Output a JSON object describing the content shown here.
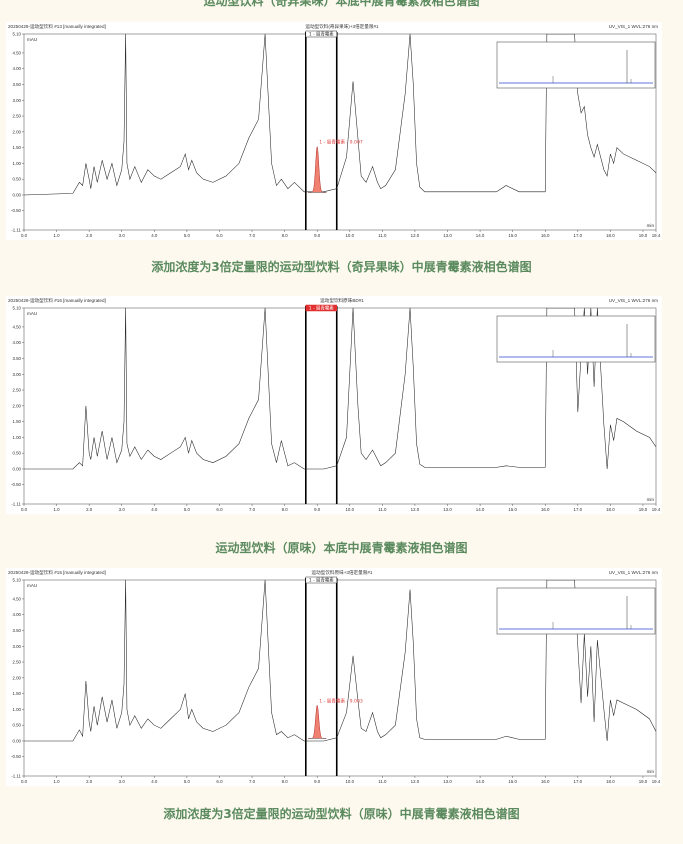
{
  "captions": {
    "top_partial": "运动型饮料（奇异果味）本底中展青霉素液相色谱图",
    "c1": "添加浓度为3倍定量限的运动型饮料（奇异果味）中展青霉素液相色谱图",
    "c2": "运动型饮料（原味）本底中展青霉素液相色谱图",
    "c3": "添加浓度为3倍定量限的运动型饮料（原味）中展青霉素液相色谱图"
  },
  "chart_data": [
    {
      "type": "line",
      "header_left": "20250429-运动型饮料 #13 [manually integrated]",
      "header_center": "运动型饮料(奇异果味)+3倍定量限#1",
      "header_right": "UV_VIS_1 WVL:276 nm",
      "marker_label": "1 - 展青霉素",
      "marker_style": "outline",
      "peak_label": "1 - 展青霉素 - 9.007",
      "ylabel": "mAU",
      "xlabel": "min",
      "xlim": [
        0.0,
        19.4
      ],
      "ylim": [
        -1.11,
        5.1
      ],
      "yticks": [
        "5.10",
        "4.50",
        "4.00",
        "3.50",
        "3.00",
        "2.50",
        "2.00",
        "1.50",
        "1.00",
        "0.50",
        "0.00",
        "-0.50",
        "-1.11"
      ],
      "xticks": [
        "0.0",
        "1.0",
        "2.0",
        "3.0",
        "4.0",
        "5.0",
        "6.0",
        "7.0",
        "8.0",
        "9.0",
        "10.0",
        "11.0",
        "12.0",
        "13.0",
        "14.0",
        "15.0",
        "16.0",
        "17.0",
        "18.0",
        "19.0",
        "19.4"
      ],
      "window_start": 8.65,
      "window_end": 9.6,
      "patulin_peak": {
        "rt": 9.0,
        "height": 1.45
      },
      "series": [
        {
          "x": [
            0,
            1.5,
            1.7,
            1.8,
            1.9,
            2.0,
            2.05,
            2.15,
            2.25,
            2.4,
            2.55,
            2.7,
            2.85,
            3.0,
            3.07,
            3.12,
            3.16,
            3.25,
            3.4,
            3.6,
            3.8,
            4.0,
            4.2,
            4.5,
            4.8,
            4.95,
            5.05,
            5.15,
            5.3,
            5.5,
            5.8,
            6.2,
            6.6,
            6.9,
            7.2,
            7.4,
            7.6,
            7.75,
            7.9,
            8.1,
            8.3,
            8.6,
            9.2,
            9.6,
            9.9,
            10.1,
            10.25,
            10.35,
            10.5,
            10.7,
            10.85,
            10.95,
            11.1,
            11.4,
            11.7,
            11.85,
            11.95,
            12.05,
            12.15,
            12.3,
            12.6,
            13,
            14,
            14.5,
            14.8,
            15.2,
            16,
            16.05,
            16.5,
            16.9,
            17.0,
            17.1,
            17.2,
            17.3,
            17.4,
            17.5,
            17.6,
            17.8,
            17.9,
            18.0,
            18.1,
            18.2,
            18.4,
            18.8,
            19.2,
            19.4
          ],
          "y": [
            0.0,
            0.05,
            0.4,
            0.3,
            1.0,
            0.5,
            0.2,
            0.9,
            0.4,
            1.1,
            0.5,
            1.0,
            0.3,
            0.8,
            1.7,
            5.1,
            1.0,
            0.5,
            0.9,
            0.4,
            0.8,
            0.6,
            0.5,
            0.7,
            0.9,
            1.3,
            0.8,
            1.1,
            0.7,
            0.5,
            0.4,
            0.6,
            1.0,
            1.8,
            2.4,
            5.1,
            1.0,
            0.3,
            0.5,
            0.2,
            0.4,
            0.1,
            0.1,
            0.2,
            1.2,
            3.6,
            1.8,
            0.6,
            0.4,
            0.9,
            0.4,
            0.2,
            0.3,
            0.8,
            3.2,
            5.1,
            3.5,
            1.0,
            0.25,
            0.1,
            0.1,
            0.1,
            0.1,
            0.1,
            0.3,
            0.1,
            0.1,
            5.1,
            5.1,
            5.1,
            3.2,
            2.6,
            2.8,
            1.9,
            1.5,
            1.2,
            1.6,
            0.8,
            0.6,
            1.3,
            1.0,
            1.5,
            1.3,
            1.1,
            0.9,
            0.7
          ]
        }
      ]
    },
    {
      "type": "line",
      "header_left": "20250429-运动型饮料 #16 [manually integrated]",
      "header_center": "运动型饮料原味BD#1",
      "header_right": "UV_VIS_1 WVL:276 nm",
      "marker_label": "1 - 展青霉素",
      "marker_style": "filled",
      "peak_label": "",
      "ylabel": "mAU",
      "xlabel": "min",
      "xlim": [
        0.0,
        19.4
      ],
      "ylim": [
        -1.11,
        5.1
      ],
      "yticks": [
        "5.10",
        "4.50",
        "4.00",
        "3.50",
        "3.00",
        "2.50",
        "2.00",
        "1.50",
        "1.00",
        "0.50",
        "0.00",
        "-0.50",
        "-1.11"
      ],
      "xticks": [
        "0.0",
        "1.0",
        "2.0",
        "3.0",
        "4.0",
        "5.0",
        "6.0",
        "7.0",
        "8.0",
        "9.0",
        "10.0",
        "11.0",
        "12.0",
        "13.0",
        "14.0",
        "15.0",
        "16.0",
        "17.0",
        "18.0",
        "19.0",
        "19.4"
      ],
      "window_start": 8.65,
      "window_end": 9.6,
      "patulin_peak": null,
      "series": [
        {
          "x": [
            0,
            1.5,
            1.7,
            1.8,
            1.9,
            2.0,
            2.05,
            2.15,
            2.25,
            2.4,
            2.55,
            2.7,
            2.85,
            3.0,
            3.07,
            3.12,
            3.16,
            3.25,
            3.4,
            3.6,
            3.8,
            4.0,
            4.2,
            4.5,
            4.8,
            4.95,
            5.05,
            5.15,
            5.3,
            5.5,
            5.8,
            6.2,
            6.6,
            6.9,
            7.2,
            7.4,
            7.6,
            7.75,
            7.9,
            8.1,
            8.3,
            8.6,
            9.2,
            9.6,
            9.9,
            10.1,
            10.25,
            10.35,
            10.5,
            10.7,
            10.85,
            10.95,
            11.1,
            11.4,
            11.7,
            11.85,
            11.95,
            12.05,
            12.15,
            12.3,
            12.6,
            13,
            14,
            14.5,
            14.8,
            15.2,
            16,
            16.05,
            16.5,
            16.9,
            17.0,
            17.1,
            17.2,
            17.3,
            17.4,
            17.5,
            17.6,
            17.8,
            17.9,
            18.0,
            18.1,
            18.2,
            18.4,
            18.8,
            19.2,
            19.4
          ],
          "y": [
            0.0,
            0.0,
            0.2,
            0.1,
            2.0,
            0.5,
            0.3,
            1.0,
            0.4,
            1.2,
            0.3,
            1.0,
            0.2,
            0.6,
            1.5,
            5.1,
            0.8,
            0.4,
            0.7,
            0.3,
            0.6,
            0.4,
            0.3,
            0.5,
            0.7,
            1.0,
            0.5,
            0.9,
            0.5,
            0.3,
            0.2,
            0.4,
            0.8,
            1.6,
            2.2,
            5.1,
            0.8,
            0.2,
            0.9,
            0.1,
            0.2,
            0.0,
            0.0,
            0.1,
            1.0,
            5.1,
            2.0,
            0.5,
            0.3,
            0.6,
            0.3,
            0.1,
            0.2,
            0.5,
            3.0,
            5.1,
            3.2,
            0.8,
            0.15,
            0.05,
            0.05,
            0.05,
            0.05,
            0.05,
            0.1,
            0.05,
            0.05,
            5.1,
            5.1,
            5.1,
            1.8,
            3.6,
            5.1,
            3.0,
            5.1,
            2.6,
            5.1,
            1.4,
            0.0,
            1.4,
            0.9,
            1.6,
            1.5,
            1.2,
            1.0,
            0.7
          ]
        }
      ]
    },
    {
      "type": "line",
      "header_left": "20250429-运动型饮料 #15 [manually integrated]",
      "header_center": "运动型饮料原味+3倍定量限#1",
      "header_right": "UV_VIS_1 WVL:276 nm",
      "marker_label": "1 - 展青霉素",
      "marker_style": "outline",
      "peak_label": "1 - 展青霉素 - 9.003",
      "ylabel": "mAU",
      "xlabel": "min",
      "xlim": [
        0.0,
        19.4
      ],
      "ylim": [
        -1.11,
        5.1
      ],
      "yticks": [
        "5.10",
        "4.50",
        "4.00",
        "3.50",
        "3.00",
        "2.50",
        "2.00",
        "1.50",
        "1.00",
        "0.50",
        "0.00",
        "-0.50",
        "-1.11"
      ],
      "xticks": [
        "0.0",
        "1.0",
        "2.0",
        "3.0",
        "4.0",
        "5.0",
        "6.0",
        "7.0",
        "8.0",
        "9.0",
        "10.0",
        "11.0",
        "12.0",
        "13.0",
        "14.0",
        "15.0",
        "16.0",
        "17.0",
        "18.0",
        "19.0",
        "19.4"
      ],
      "window_start": 8.65,
      "window_end": 9.6,
      "patulin_peak": {
        "rt": 9.0,
        "height": 1.05
      },
      "series": [
        {
          "x": [
            0,
            1.5,
            1.7,
            1.8,
            1.9,
            2.0,
            2.05,
            2.15,
            2.25,
            2.4,
            2.55,
            2.7,
            2.85,
            3.0,
            3.07,
            3.12,
            3.16,
            3.25,
            3.4,
            3.6,
            3.8,
            4.0,
            4.2,
            4.5,
            4.8,
            4.95,
            5.05,
            5.15,
            5.3,
            5.5,
            5.8,
            6.2,
            6.6,
            6.9,
            7.2,
            7.4,
            7.6,
            7.75,
            7.9,
            8.1,
            8.3,
            8.6,
            9.2,
            9.6,
            9.9,
            10.1,
            10.25,
            10.35,
            10.5,
            10.7,
            10.85,
            10.95,
            11.1,
            11.4,
            11.7,
            11.85,
            11.95,
            12.05,
            12.15,
            12.3,
            12.6,
            13,
            14,
            14.5,
            14.8,
            15.2,
            16,
            16.05,
            16.5,
            16.9,
            17.0,
            17.1,
            17.2,
            17.3,
            17.4,
            17.5,
            17.6,
            17.8,
            17.9,
            18.0,
            18.1,
            18.2,
            18.4,
            18.8,
            19.2,
            19.4
          ],
          "y": [
            0.0,
            0.0,
            0.35,
            0.15,
            1.9,
            0.6,
            0.3,
            1.1,
            0.5,
            1.4,
            0.6,
            1.3,
            0.4,
            0.9,
            1.8,
            5.1,
            1.0,
            0.5,
            0.8,
            0.4,
            0.7,
            0.5,
            0.4,
            0.7,
            1.0,
            1.5,
            0.7,
            1.0,
            0.6,
            0.4,
            0.3,
            0.5,
            0.9,
            1.7,
            2.3,
            5.1,
            0.9,
            0.2,
            0.3,
            0.1,
            0.2,
            0.0,
            0.0,
            0.1,
            0.9,
            2.7,
            1.3,
            0.4,
            0.3,
            0.9,
            0.3,
            0.1,
            0.2,
            0.5,
            2.8,
            4.8,
            3.1,
            0.7,
            0.1,
            0.05,
            0.05,
            0.05,
            0.05,
            0.05,
            0.15,
            0.05,
            0.05,
            5.1,
            5.1,
            5.1,
            3.0,
            1.2,
            3.4,
            1.4,
            3.0,
            0.6,
            3.2,
            1.0,
            0.0,
            1.3,
            0.8,
            1.3,
            1.2,
            1.0,
            0.7,
            0.3
          ]
        }
      ]
    }
  ]
}
